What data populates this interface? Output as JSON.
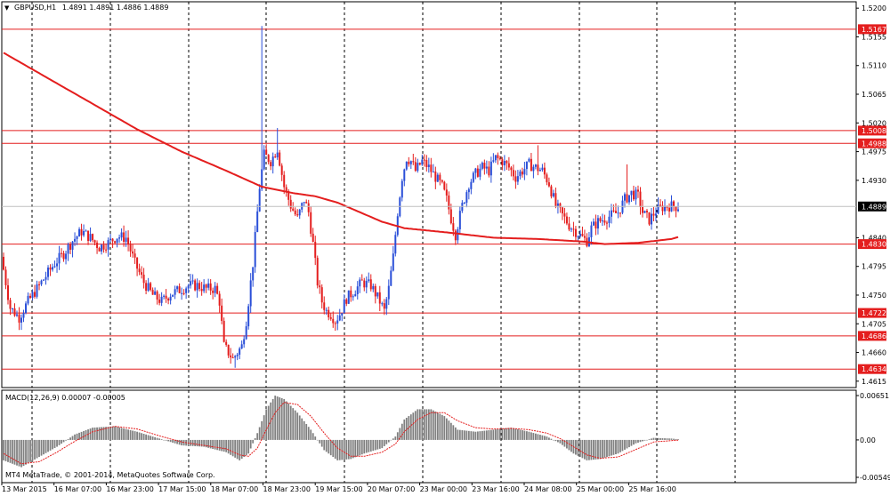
{
  "header": {
    "symbol_label": "GBPUSD,H1",
    "ohlc": "1.4891 1.4891 1.4886 1.4889",
    "menu_icon": "triangle-down-icon"
  },
  "main_price_scale": {
    "labels": [
      "1.5200",
      "1.5155",
      "1.5110",
      "1.5065",
      "1.5020",
      "1.4975",
      "1.4930",
      "1.4840",
      "1.4795",
      "1.4750",
      "1.4705",
      "1.4660",
      "1.4615"
    ],
    "current_price": "1.4889"
  },
  "levels": [
    {
      "price": 1.5167,
      "label": "1.5167"
    },
    {
      "price": 1.5008,
      "label": "1.5008"
    },
    {
      "price": 1.4988,
      "label": "1.4988"
    },
    {
      "price": 1.483,
      "label": "1.4830"
    },
    {
      "price": 1.4722,
      "label": "1.4722"
    },
    {
      "price": 1.4686,
      "label": "1.4686"
    },
    {
      "price": 1.4634,
      "label": "1.4634"
    }
  ],
  "macd": {
    "label": "MACD(12,26,9) 0.00007 -0.00005",
    "scale_labels": [
      "0.00651",
      "0.00",
      "-0.00549"
    ],
    "copyright": "MT4 MetaTrade, © 2001-2014, MetaQuotes Software Corp."
  },
  "time_axis": {
    "labels": [
      "13 Mar 2015",
      "16 Mar 07:00",
      "16 Mar 23:00",
      "17 Mar 15:00",
      "18 Mar 07:00",
      "18 Mar 23:00",
      "19 Mar 15:00",
      "20 Mar 07:00",
      "23 Mar 00:00",
      "23 Mar 16:00",
      "24 Mar 08:00",
      "25 Mar 00:00",
      "25 Mar 16:00"
    ]
  },
  "chart_data": {
    "type": "candlestick",
    "symbol": "GBPUSD",
    "timeframe": "H1",
    "ylim": [
      1.4605,
      1.521
    ],
    "anchors": [
      [
        0,
        1.481
      ],
      [
        4,
        1.473
      ],
      [
        8,
        1.4715
      ],
      [
        12,
        1.474
      ],
      [
        16,
        1.476
      ],
      [
        20,
        1.478
      ],
      [
        24,
        1.48
      ],
      [
        28,
        1.4815
      ],
      [
        32,
        1.4835
      ],
      [
        36,
        1.485
      ],
      [
        40,
        1.484
      ],
      [
        44,
        1.4825
      ],
      [
        48,
        1.4832
      ],
      [
        52,
        1.4842
      ],
      [
        56,
        1.484
      ],
      [
        60,
        1.48
      ],
      [
        64,
        1.477
      ],
      [
        68,
        1.475
      ],
      [
        72,
        1.474
      ],
      [
        76,
        1.4752
      ],
      [
        80,
        1.4758
      ],
      [
        84,
        1.4765
      ],
      [
        88,
        1.4765
      ],
      [
        92,
        1.476
      ],
      [
        96,
        1.476
      ],
      [
        98,
        1.474
      ],
      [
        100,
        1.467
      ],
      [
        104,
        1.465
      ],
      [
        108,
        1.467
      ],
      [
        110,
        1.471
      ],
      [
        113,
        1.48
      ],
      [
        116,
        1.492
      ],
      [
        118,
        1.497
      ],
      [
        121,
        1.496
      ],
      [
        124,
        1.498
      ],
      [
        127,
        1.492
      ],
      [
        130,
        1.489
      ],
      [
        133,
        1.487
      ],
      [
        136,
        1.49
      ],
      [
        138,
        1.488
      ],
      [
        140,
        1.483
      ],
      [
        142,
        1.477
      ],
      [
        144,
        1.474
      ],
      [
        146,
        1.4725
      ],
      [
        148,
        1.472
      ],
      [
        150,
        1.471
      ],
      [
        152,
        1.472
      ],
      [
        155,
        1.4745
      ],
      [
        158,
        1.4755
      ],
      [
        162,
        1.477
      ],
      [
        166,
        1.4765
      ],
      [
        170,
        1.474
      ],
      [
        172,
        1.4725
      ],
      [
        174,
        1.476
      ],
      [
        176,
        1.481
      ],
      [
        178,
        1.488
      ],
      [
        180,
        1.4935
      ],
      [
        182,
        1.4965
      ],
      [
        184,
        1.496
      ],
      [
        186,
        1.4945
      ],
      [
        189,
        1.496
      ],
      [
        192,
        1.495
      ],
      [
        195,
        1.4935
      ],
      [
        198,
        1.492
      ],
      [
        200,
        1.49
      ],
      [
        202,
        1.487
      ],
      [
        204,
        1.4845
      ],
      [
        207,
        1.489
      ],
      [
        210,
        1.4925
      ],
      [
        213,
        1.494
      ],
      [
        216,
        1.495
      ],
      [
        219,
        1.4945
      ],
      [
        222,
        1.4965
      ],
      [
        225,
        1.496
      ],
      [
        228,
        1.495
      ],
      [
        231,
        1.4935
      ],
      [
        234,
        1.4945
      ],
      [
        237,
        1.4955
      ],
      [
        240,
        1.495
      ],
      [
        243,
        1.4945
      ],
      [
        246,
        1.4925
      ],
      [
        249,
        1.489
      ],
      [
        252,
        1.4875
      ],
      [
        255,
        1.486
      ],
      [
        258,
        1.485
      ],
      [
        261,
        1.484
      ],
      [
        263,
        1.4835
      ],
      [
        265,
        1.4855
      ],
      [
        268,
        1.4865
      ],
      [
        271,
        1.487
      ],
      [
        274,
        1.4875
      ],
      [
        277,
        1.488
      ],
      [
        280,
        1.49
      ],
      [
        283,
        1.491
      ],
      [
        286,
        1.4905
      ],
      [
        288,
        1.488
      ],
      [
        291,
        1.4868
      ],
      [
        294,
        1.4882
      ],
      [
        297,
        1.4888
      ],
      [
        300,
        1.489
      ],
      [
        303,
        1.4889
      ]
    ],
    "moving_average": [
      [
        0,
        1.513
      ],
      [
        20,
        1.509
      ],
      [
        40,
        1.505
      ],
      [
        60,
        1.501
      ],
      [
        80,
        1.4975
      ],
      [
        100,
        1.4945
      ],
      [
        116,
        1.492
      ],
      [
        130,
        1.491
      ],
      [
        140,
        1.4905
      ],
      [
        150,
        1.4895
      ],
      [
        160,
        1.488
      ],
      [
        170,
        1.4865
      ],
      [
        180,
        1.4855
      ],
      [
        200,
        1.4848
      ],
      [
        220,
        1.484
      ],
      [
        240,
        1.4838
      ],
      [
        260,
        1.4834
      ],
      [
        270,
        1.483
      ],
      [
        285,
        1.4832
      ],
      [
        300,
        1.4838
      ],
      [
        303,
        1.4841
      ]
    ],
    "spikes": [
      {
        "i": 116,
        "high": 1.5172
      },
      {
        "i": 123,
        "high": 1.5012
      },
      {
        "i": 240,
        "high": 1.4985
      },
      {
        "i": 280,
        "high": 1.4955
      },
      {
        "i": 150,
        "low": 1.4695
      },
      {
        "i": 104,
        "low": 1.4636
      }
    ],
    "horizontal_levels": [
      1.5167,
      1.5008,
      1.4988,
      1.483,
      1.4722,
      1.4686,
      1.4634
    ],
    "macd_anchors": [
      [
        0,
        -0.003
      ],
      [
        8,
        -0.004
      ],
      [
        16,
        -0.0025
      ],
      [
        24,
        -0.001
      ],
      [
        32,
        0.0008
      ],
      [
        40,
        0.0018
      ],
      [
        50,
        0.002
      ],
      [
        60,
        0.0012
      ],
      [
        70,
        0.0002
      ],
      [
        80,
        -0.0008
      ],
      [
        90,
        -0.001
      ],
      [
        100,
        -0.0018
      ],
      [
        106,
        -0.003
      ],
      [
        110,
        -0.002
      ],
      [
        114,
        0.001
      ],
      [
        118,
        0.0045
      ],
      [
        122,
        0.0065
      ],
      [
        126,
        0.006
      ],
      [
        132,
        0.004
      ],
      [
        138,
        0.0015
      ],
      [
        144,
        -0.0015
      ],
      [
        150,
        -0.003
      ],
      [
        156,
        -0.0028
      ],
      [
        162,
        -0.002
      ],
      [
        170,
        -0.0012
      ],
      [
        176,
        0.0005
      ],
      [
        180,
        0.003
      ],
      [
        186,
        0.0045
      ],
      [
        192,
        0.0045
      ],
      [
        198,
        0.0035
      ],
      [
        204,
        0.0015
      ],
      [
        212,
        0.0012
      ],
      [
        220,
        0.0015
      ],
      [
        228,
        0.0018
      ],
      [
        236,
        0.0012
      ],
      [
        244,
        0.0005
      ],
      [
        250,
        -0.0005
      ],
      [
        256,
        -0.002
      ],
      [
        262,
        -0.003
      ],
      [
        268,
        -0.0028
      ],
      [
        276,
        -0.002
      ],
      [
        284,
        -0.0005
      ],
      [
        292,
        0.0003
      ],
      [
        300,
        0.0002
      ],
      [
        303,
        0.0001
      ]
    ],
    "macd_signal_anchors": [
      [
        0,
        -0.002
      ],
      [
        8,
        -0.0035
      ],
      [
        16,
        -0.0032
      ],
      [
        24,
        -0.0018
      ],
      [
        32,
        -0.0002
      ],
      [
        40,
        0.0012
      ],
      [
        50,
        0.002
      ],
      [
        60,
        0.0016
      ],
      [
        70,
        0.0006
      ],
      [
        80,
        -0.0003
      ],
      [
        90,
        -0.0008
      ],
      [
        100,
        -0.0013
      ],
      [
        106,
        -0.0022
      ],
      [
        110,
        -0.0024
      ],
      [
        114,
        -0.0012
      ],
      [
        118,
        0.0015
      ],
      [
        122,
        0.004
      ],
      [
        126,
        0.0055
      ],
      [
        132,
        0.0052
      ],
      [
        138,
        0.0035
      ],
      [
        144,
        0.001
      ],
      [
        150,
        -0.0012
      ],
      [
        156,
        -0.0024
      ],
      [
        162,
        -0.0024
      ],
      [
        170,
        -0.0018
      ],
      [
        176,
        -0.0006
      ],
      [
        180,
        0.0012
      ],
      [
        186,
        0.003
      ],
      [
        192,
        0.004
      ],
      [
        198,
        0.004
      ],
      [
        204,
        0.0028
      ],
      [
        212,
        0.0018
      ],
      [
        220,
        0.0016
      ],
      [
        228,
        0.0017
      ],
      [
        236,
        0.0015
      ],
      [
        244,
        0.001
      ],
      [
        250,
        0.0002
      ],
      [
        256,
        -0.001
      ],
      [
        262,
        -0.0022
      ],
      [
        268,
        -0.0027
      ],
      [
        276,
        -0.0025
      ],
      [
        284,
        -0.0014
      ],
      [
        292,
        -0.0003
      ],
      [
        300,
        -0.0001
      ],
      [
        303,
        -5e-05
      ]
    ],
    "macd_ylim": [
      -0.00549,
      0.00651
    ]
  }
}
